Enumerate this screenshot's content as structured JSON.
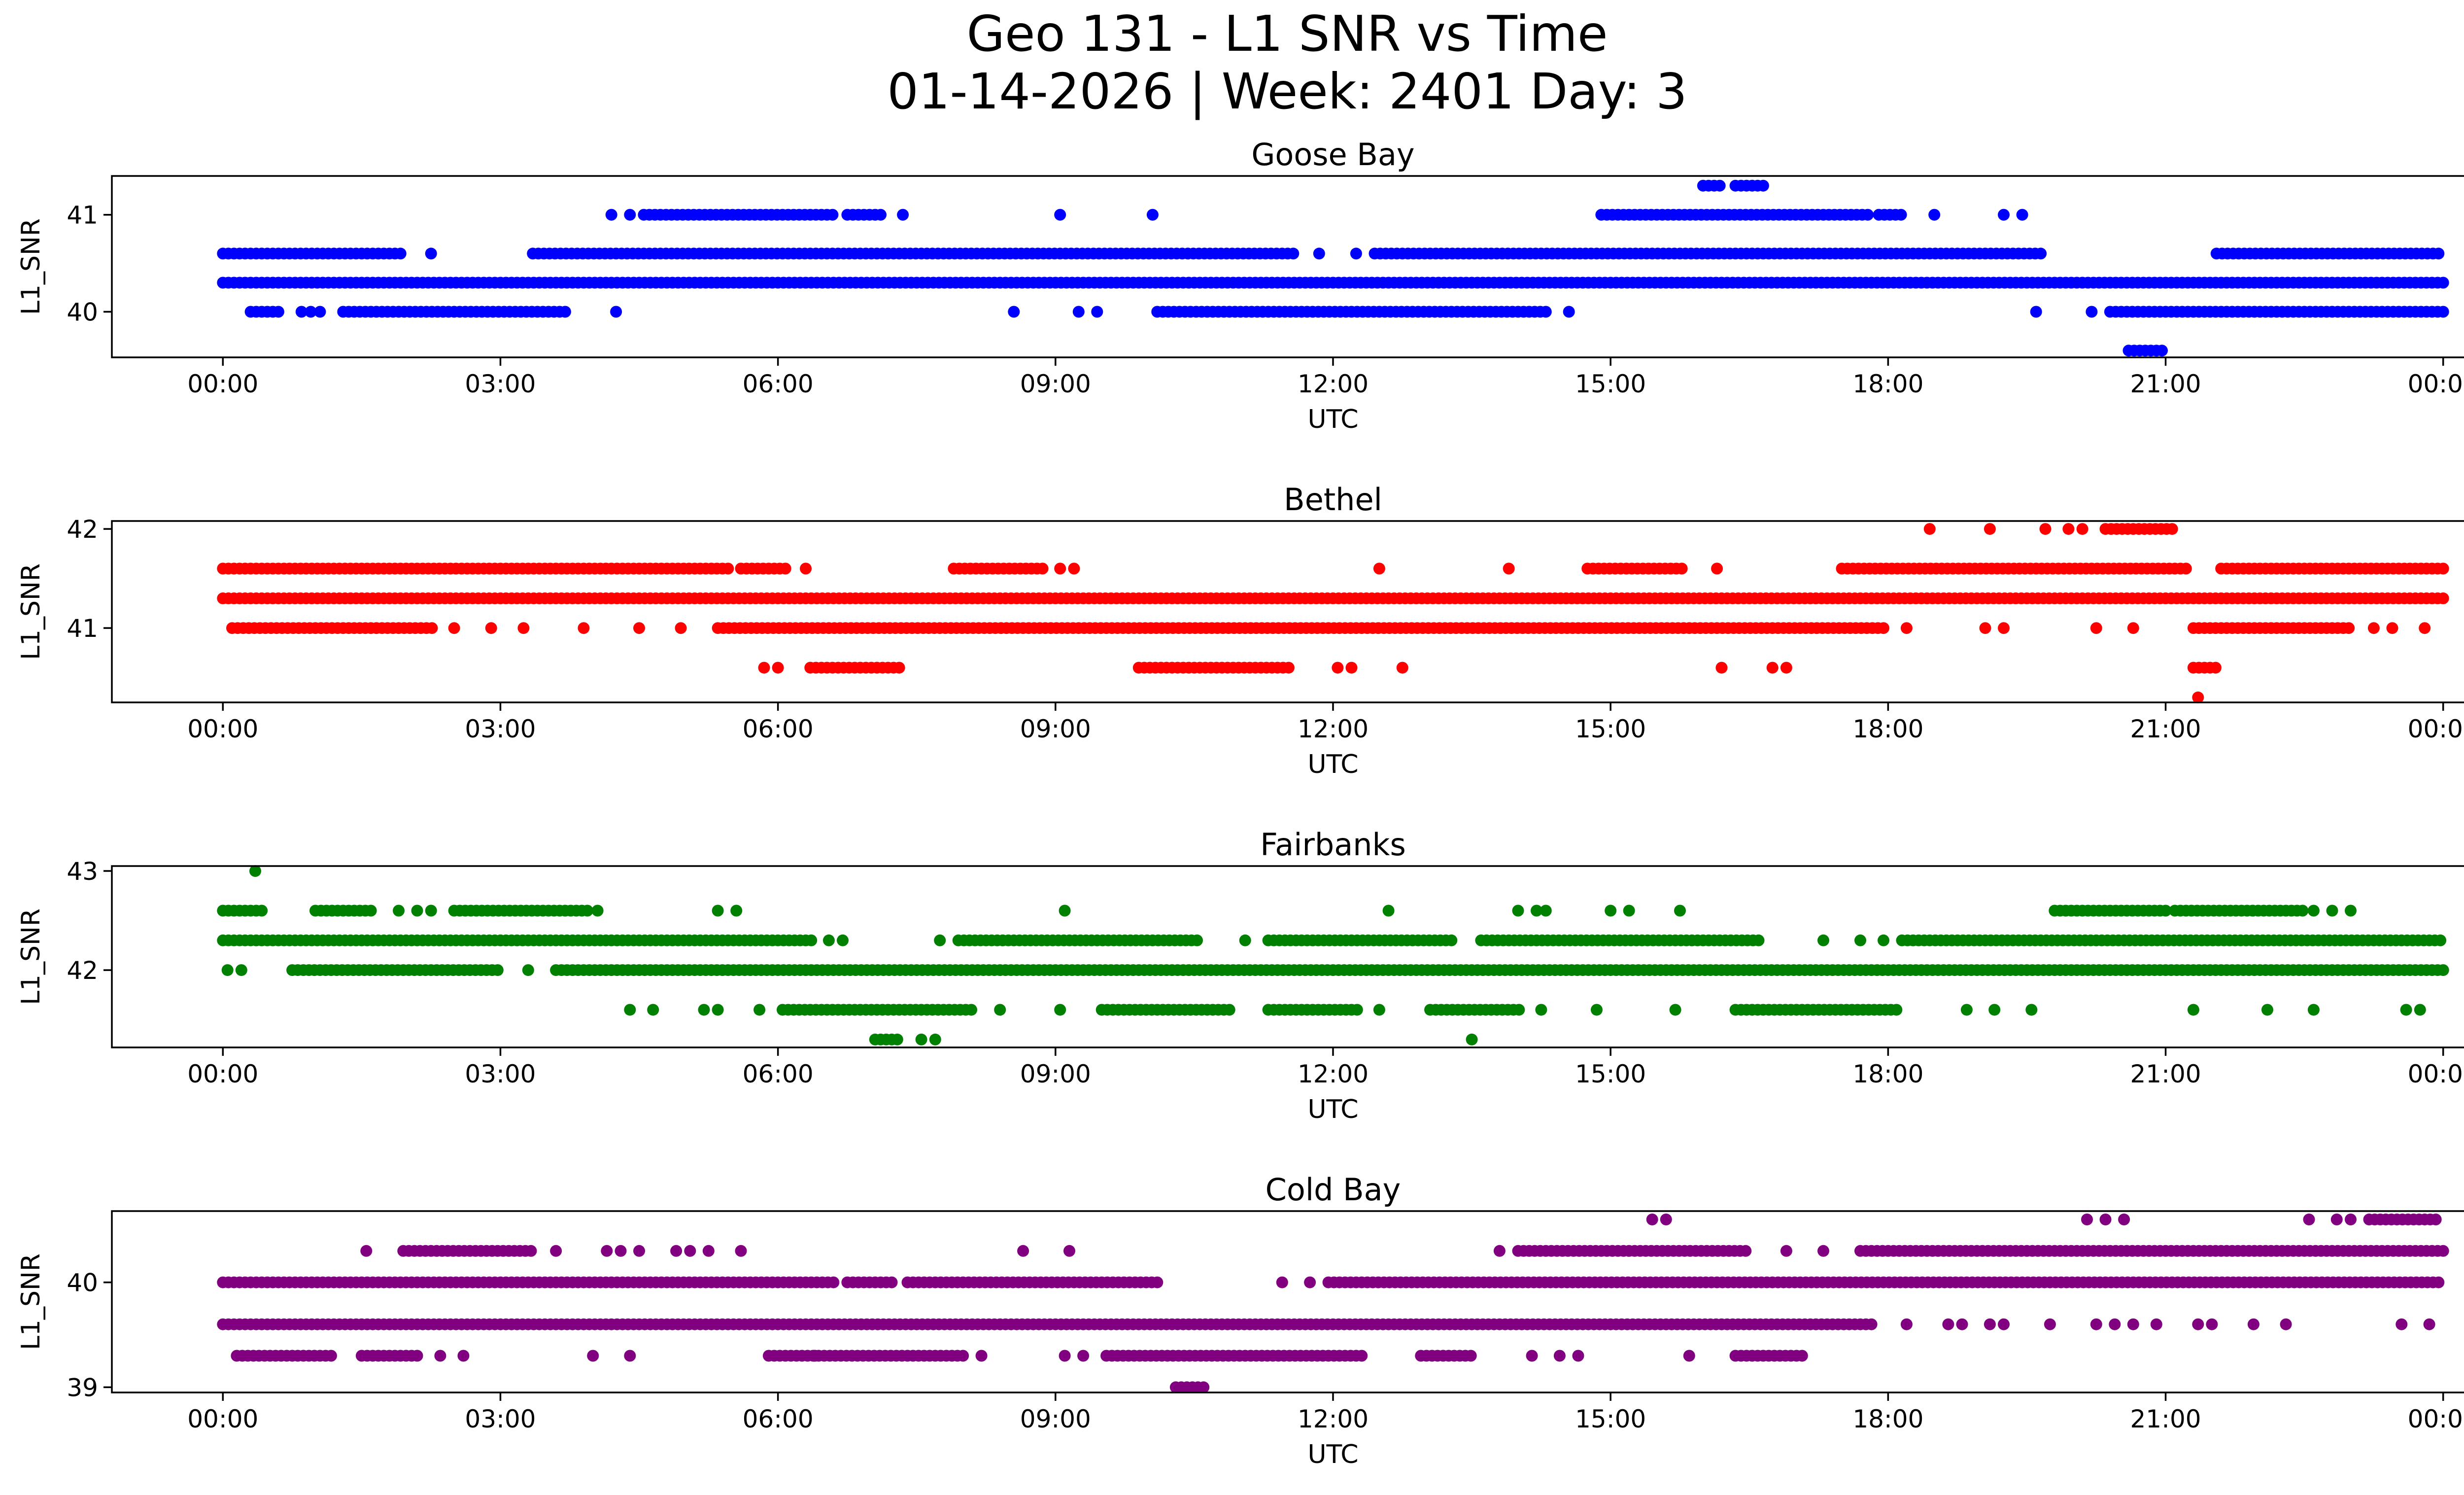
{
  "figure": {
    "title_line1": "Geo 131 - L1 SNR vs Time",
    "title_line2": "01-14-2026 | Week: 2401 Day: 3"
  },
  "chart_data": [
    {
      "type": "scatter",
      "title": "Goose Bay",
      "xlabel": "UTC",
      "ylabel": "L1_SNR",
      "color": "#0000ff",
      "xlim_hours": [
        -1.2,
        25.2
      ],
      "ylim": [
        39.53,
        41.4
      ],
      "xticks": [
        {
          "hour": 0,
          "label": "00:00"
        },
        {
          "hour": 3,
          "label": "03:00"
        },
        {
          "hour": 6,
          "label": "06:00"
        },
        {
          "hour": 9,
          "label": "09:00"
        },
        {
          "hour": 12,
          "label": "12:00"
        },
        {
          "hour": 15,
          "label": "15:00"
        },
        {
          "hour": 18,
          "label": "18:00"
        },
        {
          "hour": 21,
          "label": "21:00"
        },
        {
          "hour": 24,
          "label": "00:00"
        }
      ],
      "yticks": [
        {
          "value": 40,
          "label": "40"
        },
        {
          "value": 41,
          "label": "41"
        }
      ],
      "series": [
        {
          "level": 40.3,
          "ranges": [
            [
              0,
              24
            ]
          ],
          "points": []
        },
        {
          "level": 40.6,
          "ranges": [
            [
              0,
              1.95
            ],
            [
              3.35,
              11.6
            ],
            [
              12.45,
              19.65
            ],
            [
              21.55,
              24
            ]
          ],
          "points": [
            2.25,
            11.85,
            12.25
          ]
        },
        {
          "level": 40.0,
          "ranges": [
            [
              0.3,
              0.65
            ],
            [
              1.3,
              3.7
            ],
            [
              10.1,
              14.35
            ],
            [
              20.4,
              24
            ]
          ],
          "points": [
            0.85,
            0.95,
            1.05,
            4.25,
            8.55,
            9.25,
            9.45,
            14.55,
            19.6,
            20.2
          ]
        },
        {
          "level": 41.0,
          "ranges": [
            [
              4.55,
              6.6
            ],
            [
              6.75,
              7.15
            ],
            [
              14.9,
              17.8
            ],
            [
              17.9,
              18.15
            ]
          ],
          "points": [
            4.2,
            4.4,
            7.35,
            9.05,
            10.05,
            18.5,
            19.25,
            19.45
          ]
        },
        {
          "level": 41.3,
          "ranges": [
            [
              16.0,
              16.2
            ],
            [
              16.35,
              16.65
            ]
          ],
          "points": []
        },
        {
          "level": 39.6,
          "ranges": [
            [
              20.6,
              21.0
            ]
          ],
          "points": []
        }
      ]
    },
    {
      "type": "scatter",
      "title": "Bethel",
      "xlabel": "UTC",
      "ylabel": "L1_SNR",
      "color": "#ff0000",
      "xlim_hours": [
        -1.2,
        25.2
      ],
      "ylim": [
        40.25,
        42.08
      ],
      "xticks": [
        {
          "hour": 0,
          "label": "00:00"
        },
        {
          "hour": 3,
          "label": "03:00"
        },
        {
          "hour": 6,
          "label": "06:00"
        },
        {
          "hour": 9,
          "label": "09:00"
        },
        {
          "hour": 12,
          "label": "12:00"
        },
        {
          "hour": 15,
          "label": "15:00"
        },
        {
          "hour": 18,
          "label": "18:00"
        },
        {
          "hour": 21,
          "label": "21:00"
        },
        {
          "hour": 24,
          "label": "00:00"
        }
      ],
      "yticks": [
        {
          "value": 41,
          "label": "41"
        },
        {
          "value": 42,
          "label": "42"
        }
      ],
      "series": [
        {
          "level": 41.3,
          "ranges": [
            [
              0,
              24
            ]
          ],
          "points": []
        },
        {
          "level": 41.6,
          "ranges": [
            [
              0,
              5.5
            ],
            [
              5.6,
              6.1
            ],
            [
              7.9,
              8.9
            ],
            [
              14.75,
              15.8
            ],
            [
              17.5,
              21.25
            ],
            [
              21.6,
              24
            ]
          ],
          "points": [
            6.3,
            9.05,
            9.2,
            12.5,
            13.9,
            16.15
          ]
        },
        {
          "level": 41.0,
          "ranges": [
            [
              0.1,
              2.3
            ],
            [
              5.35,
              18.0
            ],
            [
              21.3,
              23.0
            ]
          ],
          "points": [
            2.5,
            2.9,
            3.25,
            3.9,
            4.5,
            4.95,
            18.2,
            19.05,
            19.25,
            20.25,
            20.65,
            23.25,
            23.45,
            23.8
          ]
        },
        {
          "level": 40.6,
          "ranges": [
            [
              6.35,
              7.35
            ],
            [
              9.9,
              11.55
            ],
            [
              21.3,
              21.55
            ]
          ],
          "points": [
            5.85,
            6.0,
            12.05,
            12.2,
            12.75,
            16.2,
            16.75,
            16.9
          ]
        },
        {
          "level": 42.0,
          "ranges": [
            [
              20.35,
              21.1
            ]
          ],
          "points": [
            18.45,
            19.1,
            19.7,
            19.95,
            20.1
          ]
        },
        {
          "level": 40.3,
          "ranges": [],
          "points": [
            21.35
          ]
        }
      ]
    },
    {
      "type": "scatter",
      "title": "Fairbanks",
      "xlabel": "UTC",
      "ylabel": "L1_SNR",
      "color": "#008000",
      "xlim_hours": [
        -1.2,
        25.2
      ],
      "ylim": [
        41.22,
        43.05
      ],
      "xticks": [
        {
          "hour": 0,
          "label": "00:00"
        },
        {
          "hour": 3,
          "label": "03:00"
        },
        {
          "hour": 6,
          "label": "06:00"
        },
        {
          "hour": 9,
          "label": "09:00"
        },
        {
          "hour": 12,
          "label": "12:00"
        },
        {
          "hour": 15,
          "label": "15:00"
        },
        {
          "hour": 18,
          "label": "18:00"
        },
        {
          "hour": 21,
          "label": "21:00"
        },
        {
          "hour": 24,
          "label": "00:00"
        }
      ],
      "yticks": [
        {
          "value": 42,
          "label": "42"
        },
        {
          "value": 43,
          "label": "43"
        }
      ],
      "series": [
        {
          "level": 42.3,
          "ranges": [
            [
              0,
              6.4
            ],
            [
              7.95,
              10.55
            ],
            [
              11.3,
              13.3
            ],
            [
              13.6,
              16.6
            ],
            [
              18.15,
              24
            ]
          ],
          "points": [
            6.55,
            6.7,
            7.75,
            11.05,
            17.3,
            17.7,
            17.95
          ]
        },
        {
          "level": 42.0,
          "ranges": [
            [
              0.75,
              3.0
            ],
            [
              3.6,
              24
            ]
          ],
          "points": [
            0.05,
            0.2,
            3.3
          ]
        },
        {
          "level": 42.6,
          "ranges": [
            [
              0,
              0.45
            ],
            [
              1.0,
              1.65
            ],
            [
              2.5,
              3.95
            ],
            [
              19.8,
              21.0
            ],
            [
              21.1,
              22.5
            ]
          ],
          "points": [
            1.9,
            2.1,
            2.25,
            4.05,
            5.35,
            5.55,
            9.1,
            12.6,
            14.0,
            14.2,
            14.3,
            15.0,
            15.2,
            15.75,
            22.6,
            22.8,
            23.0
          ]
        },
        {
          "level": 41.6,
          "ranges": [
            [
              6.05,
              8.1
            ],
            [
              9.5,
              10.9
            ],
            [
              11.3,
              12.3
            ],
            [
              13.05,
              14.05
            ],
            [
              16.35,
              18.1
            ]
          ],
          "points": [
            4.4,
            4.65,
            5.2,
            5.35,
            5.8,
            8.4,
            9.05,
            12.5,
            14.25,
            14.85,
            15.7,
            18.85,
            19.15,
            19.55,
            21.3,
            22.1,
            22.6,
            23.6,
            23.75
          ]
        },
        {
          "level": 43.0,
          "ranges": [],
          "points": [
            0.35
          ]
        },
        {
          "level": 41.3,
          "ranges": [
            [
              7.05,
              7.3
            ]
          ],
          "points": [
            7.55,
            7.7,
            13.5
          ]
        }
      ]
    },
    {
      "type": "scatter",
      "title": "Cold Bay",
      "xlabel": "UTC",
      "ylabel": "L1_SNR",
      "color": "#800080",
      "xlim_hours": [
        -1.2,
        25.2
      ],
      "ylim": [
        38.95,
        40.68
      ],
      "xticks": [
        {
          "hour": 0,
          "label": "00:00"
        },
        {
          "hour": 3,
          "label": "03:00"
        },
        {
          "hour": 6,
          "label": "06:00"
        },
        {
          "hour": 9,
          "label": "09:00"
        },
        {
          "hour": 12,
          "label": "12:00"
        },
        {
          "hour": 15,
          "label": "15:00"
        },
        {
          "hour": 18,
          "label": "18:00"
        },
        {
          "hour": 21,
          "label": "21:00"
        },
        {
          "hour": 24,
          "label": "00:00"
        }
      ],
      "yticks": [
        {
          "value": 39,
          "label": "39"
        },
        {
          "value": 40,
          "label": "40"
        }
      ],
      "series": [
        {
          "level": 39.6,
          "ranges": [
            [
              0,
              17.85
            ]
          ],
          "points": [
            18.2,
            18.65,
            18.8,
            19.1,
            19.25,
            19.75,
            20.25,
            20.45,
            20.65,
            20.9,
            21.35,
            21.5,
            21.95,
            22.3,
            23.55,
            23.85
          ]
        },
        {
          "level": 40.0,
          "ranges": [
            [
              0,
              6.6
            ],
            [
              6.75,
              7.25
            ],
            [
              7.4,
              10.15
            ],
            [
              11.95,
              24
            ]
          ],
          "points": [
            11.45,
            11.75
          ]
        },
        {
          "level": 40.3,
          "ranges": [
            [
              1.95,
              3.35
            ],
            [
              14.0,
              16.5
            ],
            [
              17.7,
              24
            ]
          ],
          "points": [
            1.55,
            3.6,
            4.15,
            4.3,
            4.5,
            4.9,
            5.05,
            5.25,
            5.6,
            8.65,
            9.15,
            13.8,
            16.9,
            17.3
          ]
        },
        {
          "level": 39.3,
          "ranges": [
            [
              0.15,
              1.2
            ],
            [
              1.5,
              2.1
            ],
            [
              5.9,
              8.0
            ],
            [
              9.55,
              12.35
            ],
            [
              12.95,
              13.5
            ],
            [
              16.35,
              17.1
            ]
          ],
          "points": [
            2.35,
            2.6,
            4.0,
            4.4,
            6.4,
            8.2,
            9.1,
            9.3,
            14.15,
            14.45,
            14.65,
            15.85
          ]
        },
        {
          "level": 40.6,
          "ranges": [
            [
              23.2,
              23.95
            ]
          ],
          "points": [
            15.45,
            15.6,
            20.15,
            20.35,
            20.55,
            22.55,
            22.85,
            23.0
          ]
        },
        {
          "level": 39.0,
          "ranges": [
            [
              10.3,
              10.65
            ]
          ],
          "points": []
        }
      ]
    }
  ]
}
